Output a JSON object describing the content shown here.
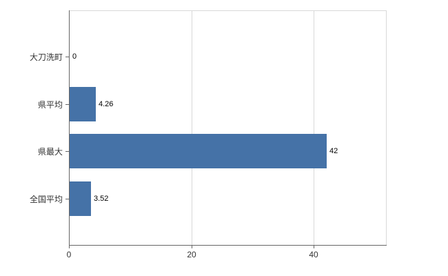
{
  "chart_data": {
    "type": "bar",
    "orientation": "horizontal",
    "title": "",
    "xlabel": "",
    "ylabel": "",
    "categories": [
      "大刀洗町",
      "県平均",
      "県最大",
      "全国平均"
    ],
    "values": [
      0,
      4.26,
      42,
      3.52
    ],
    "value_labels": [
      "0",
      "4.26",
      "42",
      "3.52"
    ],
    "xlim": [
      0,
      51.8
    ],
    "xticks": [
      0,
      20,
      40
    ],
    "xtick_labels": [
      "0",
      "20",
      "40"
    ],
    "grid": true,
    "legend": false,
    "bar_color": "#4572a7",
    "grid_color": "#d8d8d8",
    "axis_color": "#666666",
    "label_color": "#333333"
  }
}
